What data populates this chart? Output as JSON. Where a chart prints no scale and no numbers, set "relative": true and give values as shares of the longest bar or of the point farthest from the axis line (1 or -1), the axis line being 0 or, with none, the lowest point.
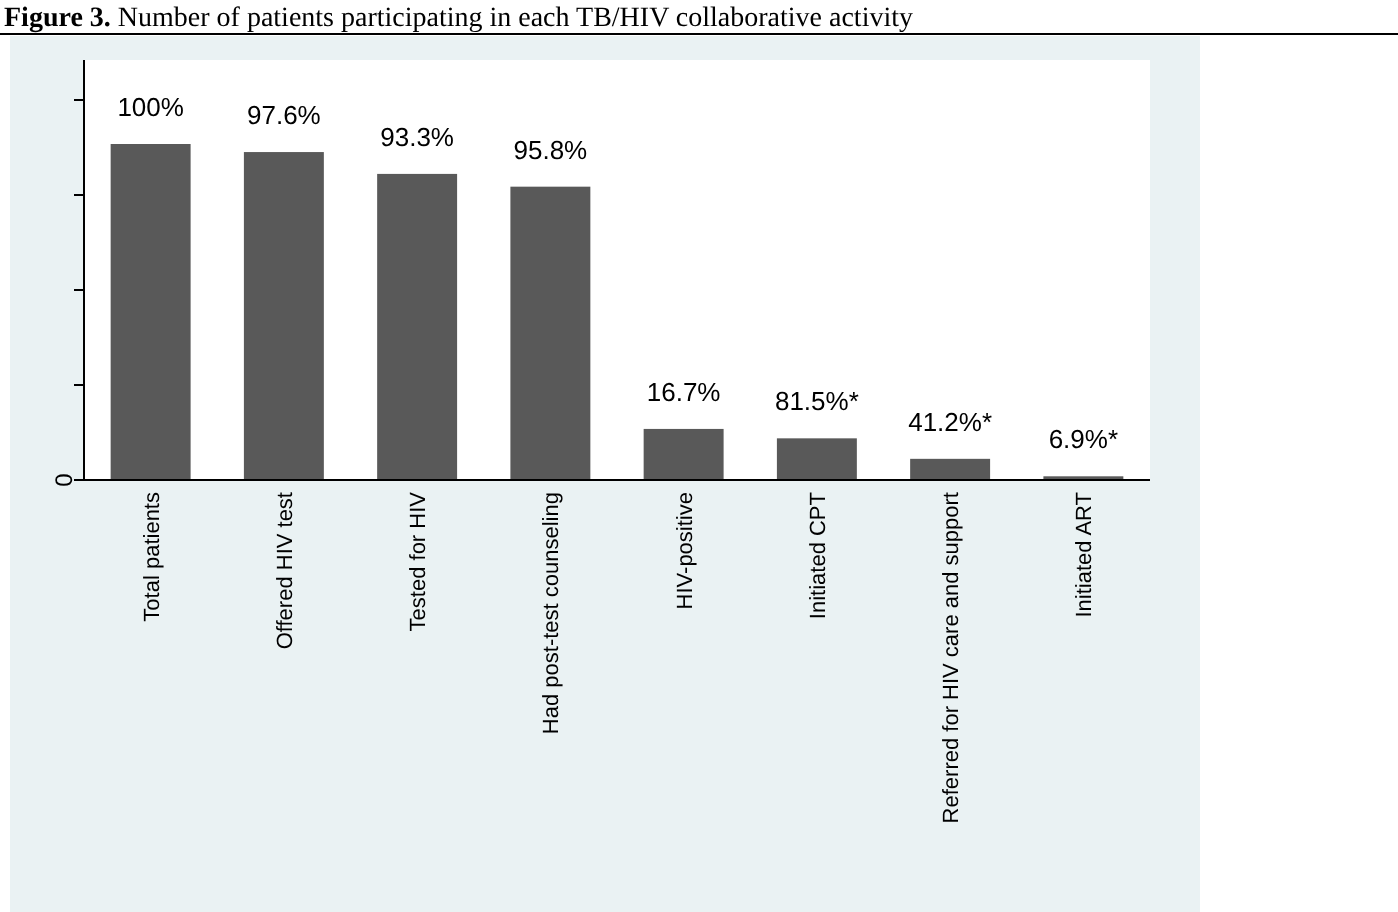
{
  "chart_data": {
    "type": "bar",
    "title": "Figure 3. Number of patients participating in each TB/HIV collaborative activity",
    "categories": [
      "Total patients",
      "Offered HIV test",
      "Tested for HIV",
      "Had post-test counseling",
      "HIV-positive",
      "Initiated CPT",
      "Referred for HIV care and support",
      "Initiated ART"
    ],
    "values": [
      1,
      0.976,
      0.911,
      0.873,
      0.152,
      0.124,
      0.063,
      0.011
    ],
    "color": "#595959",
    "relative": true,
    "annotations": [
      "0",
      "100%",
      "97.6%",
      "93.3%",
      "95.8%",
      "16.7%",
      "81.5%*",
      "41.2%*",
      "6.9%*"
    ]
  }
}
